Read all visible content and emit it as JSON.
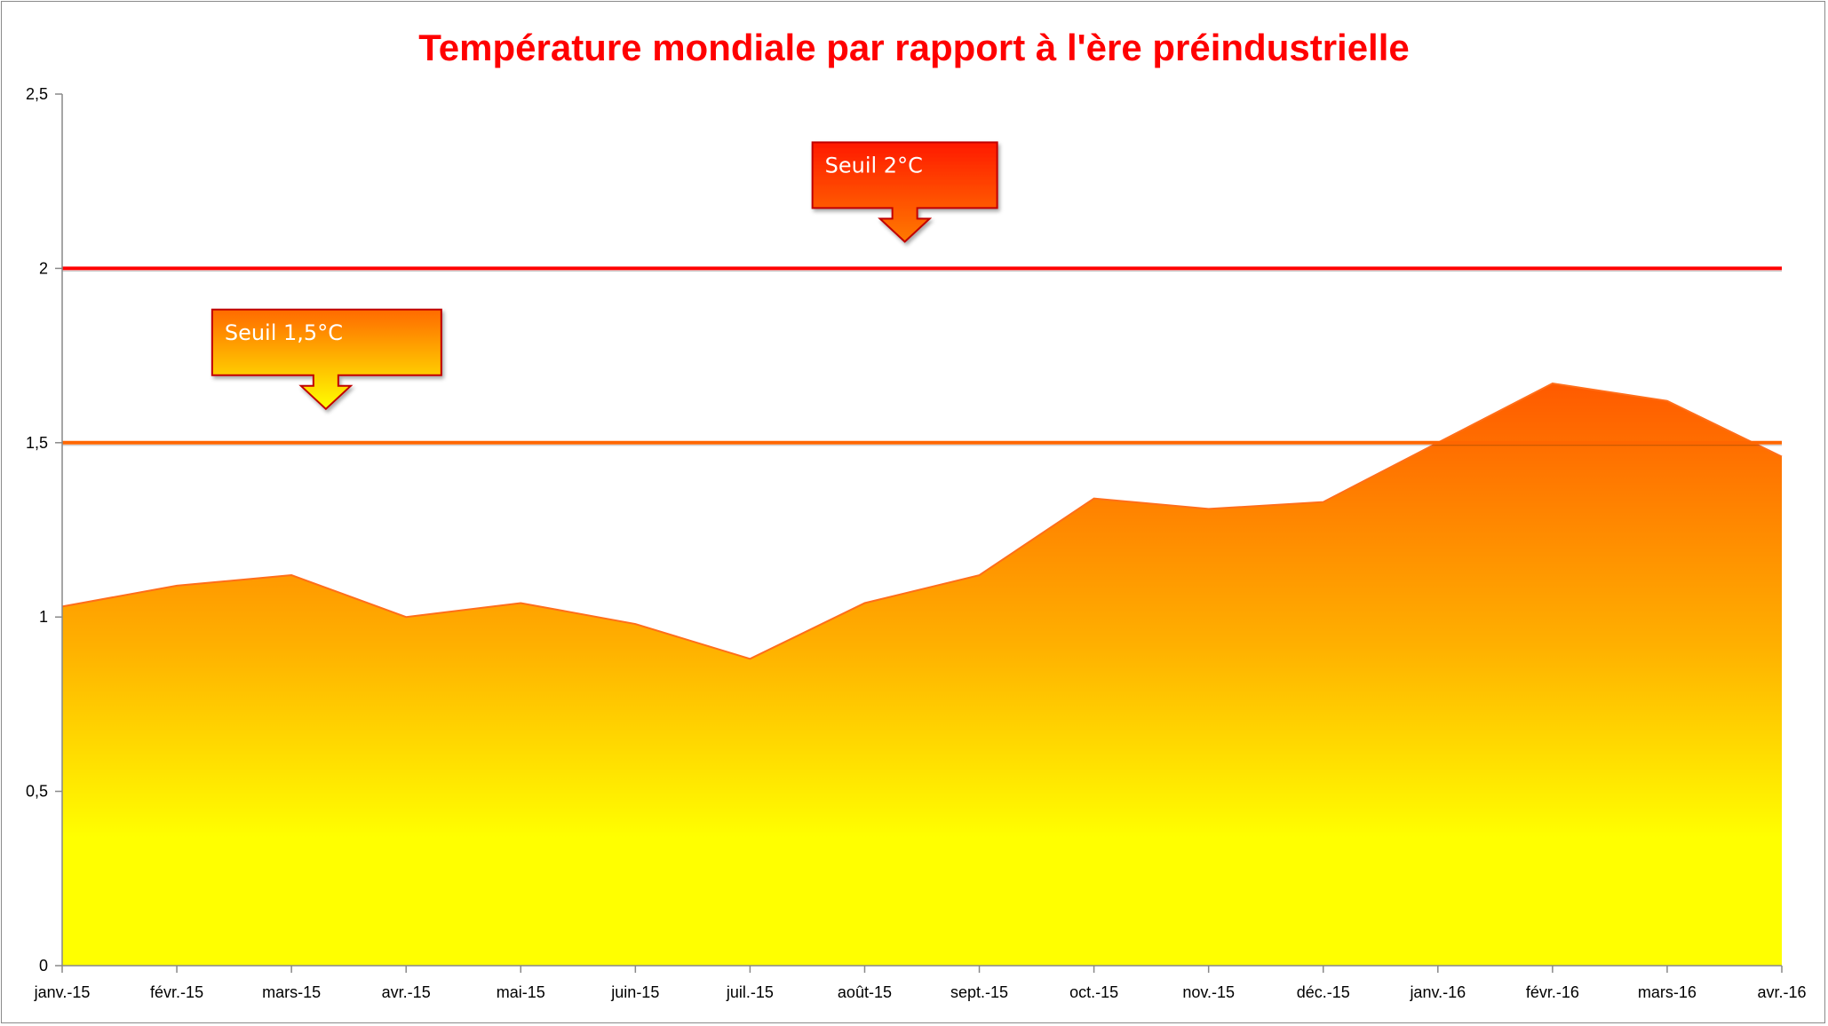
{
  "chart_data": {
    "type": "area",
    "title": "Température mondiale par rapport à l'ère préindustrielle",
    "categories": [
      "janv.-15",
      "févr.-15",
      "mars-15",
      "avr.-15",
      "mai-15",
      "juin-15",
      "juil.-15",
      "août-15",
      "sept.-15",
      "oct.-15",
      "nov.-15",
      "déc.-15",
      "janv.-16",
      "févr.-16",
      "mars-16",
      "avr.-16"
    ],
    "values": [
      1.03,
      1.09,
      1.12,
      1.0,
      1.04,
      0.98,
      0.88,
      1.04,
      1.12,
      1.34,
      1.31,
      1.33,
      1.5,
      1.67,
      1.62,
      1.46
    ],
    "ylim": [
      0,
      2.5
    ],
    "yticks": [
      "0",
      "0,5",
      "1",
      "1,5",
      "2",
      "2,5"
    ],
    "ytick_values": [
      0,
      0.5,
      1,
      1.5,
      2,
      2.5
    ],
    "thresholds": [
      {
        "label": "Seuil 2°C",
        "value": 2.0,
        "color": "#ff0000",
        "arrow_category_index": 7.35
      },
      {
        "label": "Seuil 1,5°C",
        "value": 1.5,
        "color": "#ff6600",
        "arrow_category_index": 2.3
      }
    ],
    "fill_colors": {
      "top": "#ff5a00",
      "middle": "#ffb000",
      "bottom": "#ffff00"
    },
    "title_color": "#ff0000",
    "grid": false
  }
}
